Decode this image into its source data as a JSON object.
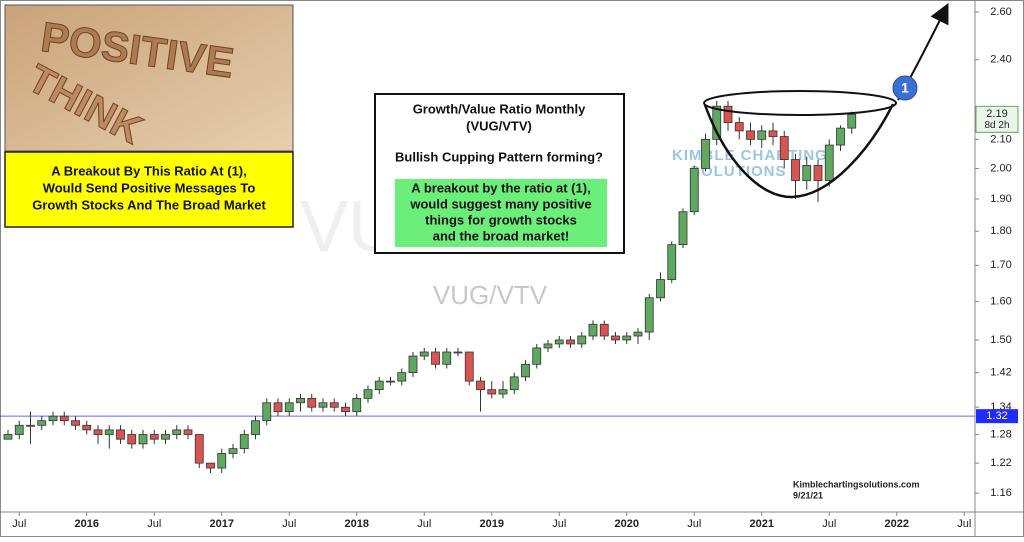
{
  "chart_data": {
    "type": "candlestick",
    "watermark": "VUG/VTV",
    "x": [
      "2015-06",
      "2015-07",
      "2015-08",
      "2015-09",
      "2015-10",
      "2015-11",
      "2015-12",
      "2016-01",
      "2016-02",
      "2016-03",
      "2016-04",
      "2016-05",
      "2016-06",
      "2016-07",
      "2016-08",
      "2016-09",
      "2016-10",
      "2016-11",
      "2016-12",
      "2017-01",
      "2017-02",
      "2017-03",
      "2017-04",
      "2017-05",
      "2017-06",
      "2017-07",
      "2017-08",
      "2017-09",
      "2017-10",
      "2017-11",
      "2017-12",
      "2018-01",
      "2018-02",
      "2018-03",
      "2018-04",
      "2018-05",
      "2018-06",
      "2018-07",
      "2018-08",
      "2018-09",
      "2018-10",
      "2018-11",
      "2018-12",
      "2019-01",
      "2019-02",
      "2019-03",
      "2019-04",
      "2019-05",
      "2019-06",
      "2019-07",
      "2019-08",
      "2019-09",
      "2019-10",
      "2019-11",
      "2019-12",
      "2020-01",
      "2020-02",
      "2020-03",
      "2020-04",
      "2020-05",
      "2020-06",
      "2020-07",
      "2020-08",
      "2020-09",
      "2020-10",
      "2020-11",
      "2020-12",
      "2021-01",
      "2021-02",
      "2021-03",
      "2021-04",
      "2021-05",
      "2021-06",
      "2021-07",
      "2021-08",
      "2021-09"
    ],
    "open": [
      1.27,
      1.28,
      1.3,
      1.3,
      1.31,
      1.32,
      1.31,
      1.3,
      1.29,
      1.28,
      1.29,
      1.28,
      1.26,
      1.28,
      1.27,
      1.28,
      1.29,
      1.28,
      1.22,
      1.21,
      1.24,
      1.25,
      1.28,
      1.31,
      1.35,
      1.33,
      1.35,
      1.36,
      1.34,
      1.35,
      1.34,
      1.33,
      1.36,
      1.38,
      1.4,
      1.4,
      1.42,
      1.46,
      1.47,
      1.44,
      1.47,
      1.47,
      1.4,
      1.38,
      1.37,
      1.38,
      1.41,
      1.44,
      1.48,
      1.49,
      1.5,
      1.49,
      1.51,
      1.54,
      1.51,
      1.5,
      1.51,
      1.52,
      1.61,
      1.66,
      1.76,
      1.86,
      2.0,
      2.1,
      2.22,
      2.16,
      2.13,
      2.1,
      2.13,
      2.11,
      2.03,
      1.96,
      2.01,
      1.96,
      2.08,
      2.14
    ],
    "high": [
      1.29,
      1.31,
      1.33,
      1.32,
      1.33,
      1.33,
      1.32,
      1.31,
      1.3,
      1.3,
      1.3,
      1.29,
      1.29,
      1.29,
      1.29,
      1.3,
      1.3,
      1.28,
      1.22,
      1.25,
      1.26,
      1.29,
      1.32,
      1.36,
      1.36,
      1.36,
      1.37,
      1.37,
      1.36,
      1.36,
      1.35,
      1.37,
      1.39,
      1.41,
      1.41,
      1.43,
      1.47,
      1.48,
      1.48,
      1.48,
      1.48,
      1.47,
      1.41,
      1.4,
      1.4,
      1.42,
      1.45,
      1.49,
      1.5,
      1.51,
      1.51,
      1.52,
      1.55,
      1.55,
      1.52,
      1.52,
      1.53,
      1.62,
      1.68,
      1.77,
      1.87,
      2.01,
      2.12,
      2.24,
      2.24,
      2.18,
      2.16,
      2.15,
      2.16,
      2.13,
      2.05,
      2.04,
      2.03,
      2.1,
      2.15,
      2.2
    ],
    "low": [
      1.27,
      1.27,
      1.26,
      1.29,
      1.3,
      1.3,
      1.29,
      1.28,
      1.26,
      1.25,
      1.26,
      1.25,
      1.25,
      1.26,
      1.26,
      1.27,
      1.27,
      1.21,
      1.2,
      1.2,
      1.23,
      1.24,
      1.27,
      1.3,
      1.32,
      1.32,
      1.33,
      1.33,
      1.33,
      1.33,
      1.32,
      1.32,
      1.35,
      1.37,
      1.39,
      1.39,
      1.41,
      1.45,
      1.43,
      1.43,
      1.46,
      1.39,
      1.33,
      1.36,
      1.36,
      1.37,
      1.4,
      1.43,
      1.47,
      1.48,
      1.48,
      1.48,
      1.5,
      1.5,
      1.49,
      1.49,
      1.49,
      1.5,
      1.6,
      1.65,
      1.75,
      1.85,
      1.99,
      2.08,
      2.13,
      2.1,
      2.08,
      2.07,
      2.08,
      2.0,
      1.9,
      1.93,
      1.89,
      1.94,
      2.06,
      2.12
    ],
    "close": [
      1.28,
      1.3,
      1.3,
      1.31,
      1.32,
      1.31,
      1.3,
      1.29,
      1.28,
      1.29,
      1.27,
      1.26,
      1.28,
      1.27,
      1.28,
      1.29,
      1.28,
      1.22,
      1.21,
      1.24,
      1.25,
      1.28,
      1.31,
      1.35,
      1.33,
      1.35,
      1.36,
      1.34,
      1.35,
      1.34,
      1.33,
      1.36,
      1.38,
      1.4,
      1.4,
      1.42,
      1.46,
      1.47,
      1.44,
      1.47,
      1.47,
      1.4,
      1.38,
      1.37,
      1.38,
      1.41,
      1.44,
      1.48,
      1.49,
      1.5,
      1.49,
      1.51,
      1.54,
      1.51,
      1.5,
      1.51,
      1.52,
      1.61,
      1.66,
      1.76,
      1.86,
      2.0,
      2.1,
      2.22,
      2.16,
      2.13,
      2.1,
      2.13,
      2.11,
      2.03,
      1.96,
      2.01,
      1.96,
      2.08,
      2.14,
      2.19
    ],
    "up_color": "#5fa85f",
    "down_color": "#d9534f",
    "log_scale": true,
    "ylim": [
      1.124,
      2.653
    ],
    "yticks": [
      1.16,
      1.22,
      1.28,
      1.34,
      1.42,
      {
        "value": 1.5,
        "label": "1.50"
      },
      {
        "value": 1.6,
        "label": "1.60"
      },
      {
        "value": 1.7,
        "label": "1.70"
      },
      {
        "value": 1.8,
        "label": "1.80"
      },
      {
        "value": 1.9,
        "label": "1.90"
      },
      {
        "value": 2,
        "label": "2.00"
      },
      {
        "value": 2.1,
        "label": "2.10"
      },
      {
        "value": 2.4,
        "label": "2.40"
      },
      {
        "value": 2.6,
        "label": "2.60"
      }
    ],
    "xticks": [
      {
        "value": "2015-07",
        "label": "Jul"
      },
      {
        "value": "2016-01",
        "label": "2016"
      },
      {
        "value": "2016-07",
        "label": "Jul"
      },
      {
        "value": "2017-01",
        "label": "2017"
      },
      {
        "value": "2017-07",
        "label": "Jul"
      },
      {
        "value": "2018-01",
        "label": "2018"
      },
      {
        "value": "2018-07",
        "label": "Jul"
      },
      {
        "value": "2019-01",
        "label": "2019"
      },
      {
        "value": "2019-07",
        "label": "Jul"
      },
      {
        "value": "2020-01",
        "label": "2020"
      },
      {
        "value": "2020-07",
        "label": "Jul"
      },
      {
        "value": "2021-01",
        "label": "2021"
      },
      {
        "value": "2021-07",
        "label": "Jul"
      },
      {
        "value": "2022-01",
        "label": "2022"
      },
      {
        "value": "2022-07",
        "label": "Jul"
      }
    ],
    "hline": 1.32,
    "hline_color": "#1f2bff",
    "last_price": 2.19,
    "countdown": "8d 2h",
    "marker": "1"
  },
  "inset": {
    "words": [
      "POSITIVE",
      "THINK"
    ],
    "caption": [
      "A Breakout By This Ratio At (1),",
      "Would Send Positive Messages To",
      "Growth Stocks And The Broad Market"
    ]
  },
  "note": {
    "title": [
      "Growth/Value Ratio Monthly",
      "(VUG/VTV)"
    ],
    "question": "Bullish Cupping Pattern forming?",
    "highlight": [
      "A breakout by the ratio at (1),",
      "would suggest many positive",
      "things for growth stocks",
      "and the broad market!"
    ]
  },
  "brand": [
    "KIMBLE CHARTING",
    "SOLUTIONS"
  ],
  "footer": [
    "Kimblechartingsolutions.com",
    "9/21/21"
  ]
}
